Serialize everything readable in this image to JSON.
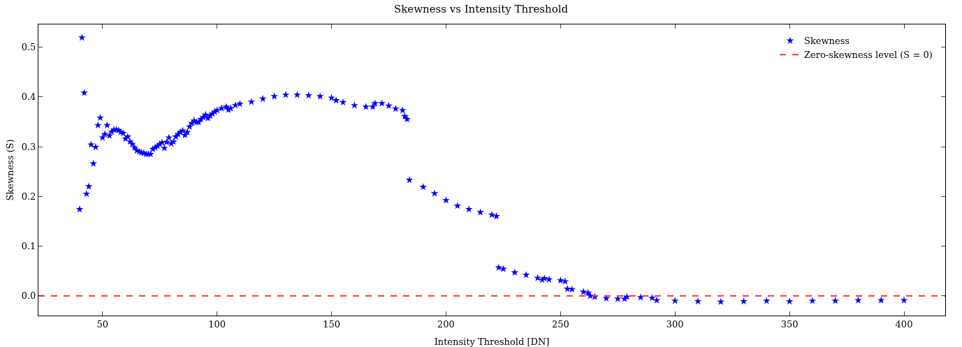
{
  "chart_data": {
    "type": "scatter",
    "title": "Skewness vs Intensity Threshold",
    "xlabel": "Intensity Threshold [DN]",
    "ylabel": "Skewness (S)",
    "x": [
      40,
      41,
      42,
      43,
      44,
      45,
      46,
      47,
      48,
      49,
      50,
      51,
      52,
      53,
      54,
      55,
      56,
      57,
      58,
      59,
      60,
      61,
      62,
      63,
      64,
      65,
      66,
      67,
      68,
      69,
      70,
      71,
      72,
      73,
      74,
      75,
      76,
      77,
      78,
      79,
      80,
      81,
      82,
      83,
      84,
      85,
      86,
      87,
      88,
      89,
      90,
      91,
      92,
      93,
      94,
      95,
      96,
      97,
      98,
      99,
      100,
      102,
      104,
      105,
      106,
      108,
      110,
      115,
      120,
      125,
      130,
      135,
      140,
      145,
      150,
      152,
      155,
      160,
      165,
      168,
      169,
      172,
      175,
      178,
      181,
      182,
      183,
      184,
      190,
      195,
      200,
      205,
      210,
      215,
      220,
      222,
      223,
      225,
      230,
      235,
      240,
      242,
      243,
      245,
      250,
      252,
      253,
      255,
      260,
      262,
      263,
      265,
      270,
      275,
      278,
      279,
      285,
      290,
      292,
      300,
      310,
      320,
      330,
      340,
      350,
      360,
      370,
      380,
      390,
      400
    ],
    "series": [
      {
        "name": "Skewness",
        "color": "#0000ff",
        "marker": "star",
        "values": [
          0.174,
          0.519,
          0.408,
          0.205,
          0.22,
          0.304,
          0.266,
          0.299,
          0.343,
          0.358,
          0.318,
          0.325,
          0.343,
          0.322,
          0.33,
          0.334,
          0.334,
          0.333,
          0.329,
          0.327,
          0.316,
          0.32,
          0.31,
          0.305,
          0.298,
          0.292,
          0.29,
          0.288,
          0.287,
          0.285,
          0.285,
          0.285,
          0.295,
          0.298,
          0.301,
          0.305,
          0.308,
          0.297,
          0.309,
          0.318,
          0.306,
          0.31,
          0.32,
          0.325,
          0.329,
          0.332,
          0.323,
          0.329,
          0.34,
          0.347,
          0.352,
          0.349,
          0.349,
          0.355,
          0.359,
          0.364,
          0.357,
          0.362,
          0.366,
          0.37,
          0.373,
          0.377,
          0.38,
          0.374,
          0.377,
          0.383,
          0.386,
          0.39,
          0.396,
          0.401,
          0.404,
          0.404,
          0.403,
          0.401,
          0.398,
          0.393,
          0.389,
          0.383,
          0.38,
          0.38,
          0.387,
          0.387,
          0.382,
          0.376,
          0.373,
          0.361,
          0.355,
          0.233,
          0.219,
          0.206,
          0.192,
          0.181,
          0.174,
          0.168,
          0.163,
          0.16,
          0.057,
          0.054,
          0.047,
          0.042,
          0.036,
          0.032,
          0.035,
          0.033,
          0.031,
          0.029,
          0.014,
          0.013,
          0.008,
          0.006,
          0.0,
          -0.002,
          -0.005,
          -0.006,
          -0.006,
          -0.002,
          -0.003,
          -0.004,
          -0.009,
          -0.01,
          -0.011,
          -0.012,
          -0.011,
          -0.01,
          -0.011,
          -0.01,
          -0.01,
          -0.009,
          -0.009,
          -0.009
        ]
      }
    ],
    "ref_lines": [
      {
        "axis": "y",
        "value": 0,
        "label": "Zero-skewness level (S = 0)",
        "color": "#ff3333",
        "line_style": "dashed"
      }
    ],
    "xlim": [
      22,
      418
    ],
    "xticks": [
      50,
      100,
      150,
      200,
      250,
      300,
      350,
      400
    ],
    "ylim": [
      -0.0396,
      0.5456
    ],
    "yticks": [
      {
        "value": 0,
        "label": "0.0"
      },
      {
        "value": 0.1,
        "label": "0.1"
      },
      {
        "value": 0.2,
        "label": "0.2"
      },
      {
        "value": 0.3,
        "label": "0.3"
      },
      {
        "value": 0.4,
        "label": "0.4"
      },
      {
        "value": 0.5,
        "label": "0.5"
      }
    ],
    "grid": false,
    "legend": "top right"
  }
}
